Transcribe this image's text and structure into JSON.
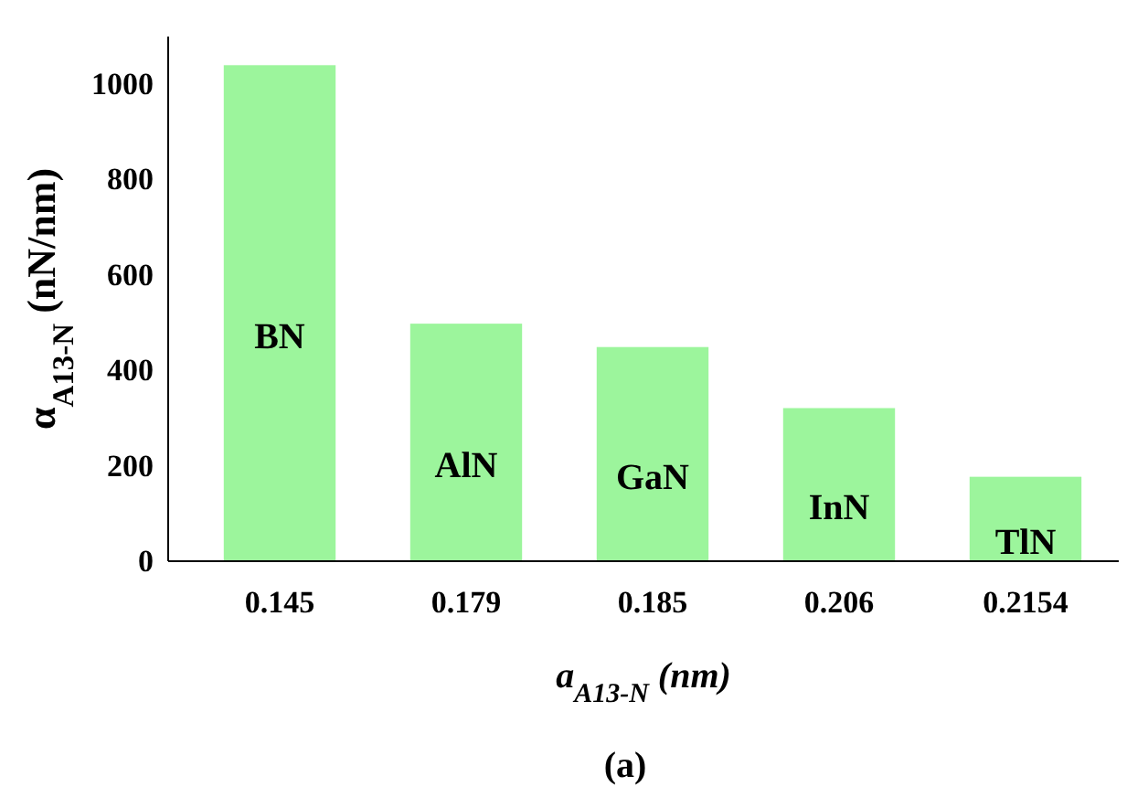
{
  "chart_data": {
    "type": "bar",
    "categories": [
      "0.145",
      "0.179",
      "0.185",
      "0.206",
      "0.2154"
    ],
    "values": [
      1040,
      498,
      449,
      321,
      177
    ],
    "color": "#9cf59c",
    "ylim": [
      0,
      1100
    ],
    "yticks": [
      0,
      200,
      400,
      600,
      800,
      1000
    ],
    "grid": false,
    "xlabel": "a$_{A13-N}$ (nm)",
    "ylabel": "α$_{A13-N}$ (nN/nm)",
    "annotations": [
      "BN",
      "AlN",
      "GaN",
      "InN",
      "TlN",
      "(a)"
    ]
  }
}
